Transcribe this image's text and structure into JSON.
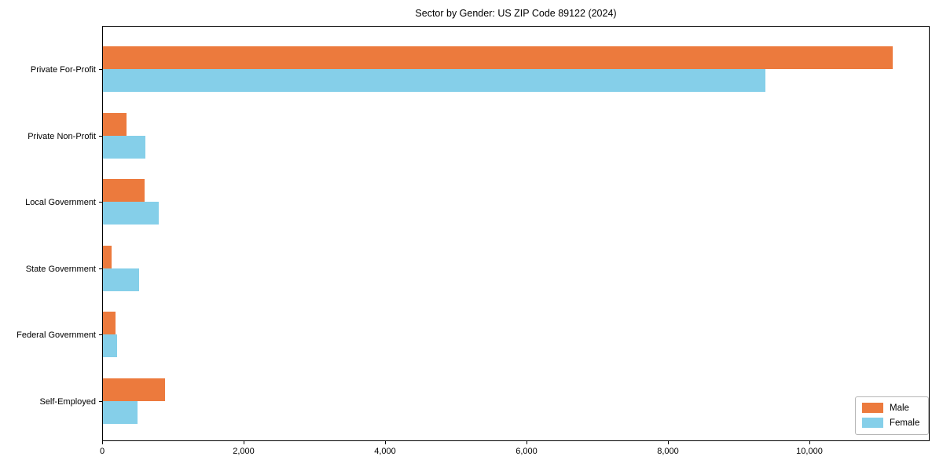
{
  "title": "Sector by Gender: US ZIP Code 89122 (2024)",
  "chart_data": {
    "type": "bar",
    "orientation": "horizontal",
    "title": "Sector by Gender: US ZIP Code 89122 (2024)",
    "categories": [
      "Private For-Profit",
      "Private Non-Profit",
      "Local Government",
      "State Government",
      "Federal Government",
      "Self-Employed"
    ],
    "series": [
      {
        "name": "Male",
        "color": "#ec7a3d",
        "values": [
          11170,
          330,
          590,
          120,
          180,
          880
        ]
      },
      {
        "name": "Female",
        "color": "#85cfe9",
        "values": [
          9370,
          600,
          790,
          510,
          195,
          490
        ]
      }
    ],
    "xlabel": "",
    "ylabel": "",
    "xlim": [
      0,
      11700
    ],
    "xticks": [
      0,
      2000,
      4000,
      6000,
      8000,
      10000
    ],
    "xtick_labels": [
      "0",
      "2,000",
      "4,000",
      "6,000",
      "8,000",
      "10,000"
    ],
    "grid": false,
    "legend_position": "lower right"
  }
}
